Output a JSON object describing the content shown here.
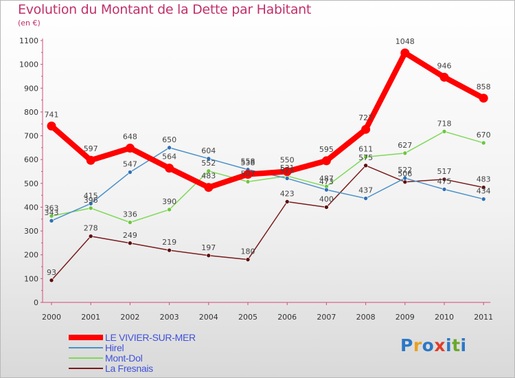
{
  "title": "Evolution du Montant de la Dette par Habitant",
  "subtitle": "(en €)",
  "logo": {
    "letters": [
      "P",
      "r",
      "o",
      "x",
      "i",
      "t",
      "i"
    ],
    "colors": [
      "#2b78c5",
      "#e8a020",
      "#2b78c5",
      "#e03c2a",
      "#2b78c5",
      "#6aa82c",
      "#2b78c5"
    ]
  },
  "chart_data": {
    "type": "line",
    "title": "Evolution du Montant de la Dette par Habitant",
    "ylabel": "(en €)",
    "xlabel": "",
    "ylim": [
      0,
      1100
    ],
    "yticks": [
      0,
      100,
      200,
      300,
      400,
      500,
      600,
      700,
      800,
      900,
      1000,
      1100
    ],
    "grid": false,
    "legend_position": "bottom-left",
    "categories": [
      "2000",
      "2001",
      "2002",
      "2003",
      "2004",
      "2005",
      "2006",
      "2007",
      "2008",
      "2009",
      "2010",
      "2011"
    ],
    "series": [
      {
        "name": "LE VIVIER-SUR-MER",
        "color": "#ff0000",
        "values": [
          741,
          597,
          648,
          564,
          483,
          538,
          550,
          595,
          727,
          1048,
          946,
          858
        ]
      },
      {
        "name": "Hirel",
        "color": "#4a90c9",
        "values": [
          343,
          415,
          547,
          650,
          604,
          558,
          521,
          473,
          437,
          522,
          475,
          434
        ]
      },
      {
        "name": "Mont-Dol",
        "color": "#7ed957",
        "values": [
          363,
          396,
          336,
          390,
          552,
          507,
          531,
          487,
          611,
          627,
          718,
          670
        ]
      },
      {
        "name": "La Fresnais",
        "color": "#7a1a1a",
        "values": [
          93,
          278,
          249,
          219,
          197,
          180,
          423,
          400,
          575,
          506,
          517,
          483
        ]
      }
    ]
  }
}
